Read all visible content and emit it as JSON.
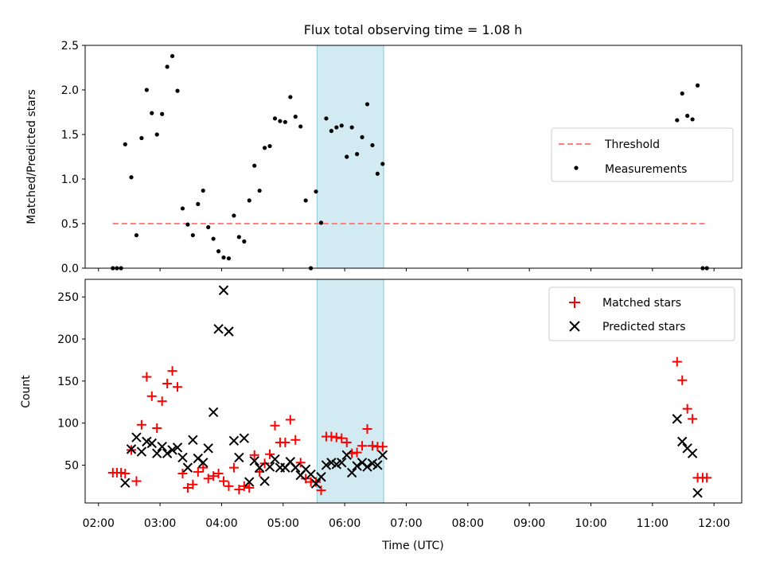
{
  "title": "Flux total observing time = 1.08 h",
  "xlabel": "Time (UTC)",
  "x_ticks": [
    "02:00",
    "03:00",
    "04:00",
    "05:00",
    "06:00",
    "07:00",
    "08:00",
    "09:00",
    "10:00",
    "11:00",
    "12:00"
  ],
  "x_range": [
    "01:47",
    "12:27"
  ],
  "highlight_span": {
    "start": "05:33",
    "end": "06:38",
    "color": "#add8e6"
  },
  "colors": {
    "threshold": "#ff7f7f",
    "measurement": "#000000",
    "matched": "#ff0000",
    "predicted": "#000000",
    "span": "#add8e6"
  },
  "chart_data": [
    {
      "type": "scatter",
      "ylabel": "Matched/Predicted stars",
      "ylim": [
        0,
        2.5
      ],
      "y_ticks": [
        "0.0",
        "0.5",
        "1.0",
        "1.5",
        "2.0",
        "2.5"
      ],
      "legend_position": "center-right",
      "threshold": {
        "name": "Threshold",
        "value": 0.5,
        "x_range": [
          "02:14",
          "11:51"
        ]
      },
      "series": [
        {
          "name": "Measurements",
          "marker": "dot",
          "points": [
            [
              "02:14",
              0
            ],
            [
              "02:18",
              0
            ],
            [
              "02:22",
              0
            ],
            [
              "02:26",
              1.39
            ],
            [
              "02:32",
              1.02
            ],
            [
              "02:37",
              0.37
            ],
            [
              "02:42",
              1.46
            ],
            [
              "02:47",
              2.0
            ],
            [
              "02:52",
              1.74
            ],
            [
              "02:57",
              1.5
            ],
            [
              "03:02",
              1.73
            ],
            [
              "03:07",
              2.26
            ],
            [
              "03:12",
              2.38
            ],
            [
              "03:17",
              1.99
            ],
            [
              "03:22",
              0.67
            ],
            [
              "03:27",
              0.49
            ],
            [
              "03:32",
              0.37
            ],
            [
              "03:37",
              0.72
            ],
            [
              "03:42",
              0.87
            ],
            [
              "03:47",
              0.46
            ],
            [
              "03:52",
              0.33
            ],
            [
              "03:57",
              0.19
            ],
            [
              "04:02",
              0.12
            ],
            [
              "04:07",
              0.11
            ],
            [
              "04:12",
              0.59
            ],
            [
              "04:17",
              0.35
            ],
            [
              "04:22",
              0.3
            ],
            [
              "04:27",
              0.76
            ],
            [
              "04:32",
              1.15
            ],
            [
              "04:37",
              0.87
            ],
            [
              "04:42",
              1.35
            ],
            [
              "04:47",
              1.37
            ],
            [
              "04:52",
              1.68
            ],
            [
              "04:57",
              1.65
            ],
            [
              "05:02",
              1.64
            ],
            [
              "05:07",
              1.92
            ],
            [
              "05:12",
              1.7
            ],
            [
              "05:17",
              1.59
            ],
            [
              "05:22",
              0.76
            ],
            [
              "05:27",
              0
            ],
            [
              "05:32",
              0.86
            ],
            [
              "05:37",
              0.51
            ],
            [
              "05:42",
              1.68
            ],
            [
              "05:47",
              1.54
            ],
            [
              "05:52",
              1.58
            ],
            [
              "05:57",
              1.6
            ],
            [
              "06:02",
              1.25
            ],
            [
              "06:07",
              1.58
            ],
            [
              "06:12",
              1.28
            ],
            [
              "06:17",
              1.47
            ],
            [
              "06:22",
              1.84
            ],
            [
              "06:27",
              1.38
            ],
            [
              "06:32",
              1.06
            ],
            [
              "06:37",
              1.17
            ],
            [
              "11:24",
              1.66
            ],
            [
              "11:29",
              1.96
            ],
            [
              "11:34",
              1.71
            ],
            [
              "11:39",
              1.67
            ],
            [
              "11:44",
              2.05
            ],
            [
              "11:49",
              0
            ],
            [
              "11:53",
              0
            ]
          ]
        }
      ]
    },
    {
      "type": "scatter",
      "ylabel": "Count",
      "ylim": [
        5,
        271
      ],
      "y_ticks": [
        "50",
        "100",
        "150",
        "200",
        "250"
      ],
      "legend_position": "upper-right",
      "series": [
        {
          "name": "Matched stars",
          "marker": "plus",
          "points": [
            [
              "02:14",
              41
            ],
            [
              "02:18",
              41
            ],
            [
              "02:22",
              41
            ],
            [
              "02:26",
              40
            ],
            [
              "02:32",
              68
            ],
            [
              "02:37",
              31
            ],
            [
              "02:42",
              98
            ],
            [
              "02:47",
              155
            ],
            [
              "02:52",
              132
            ],
            [
              "02:57",
              94
            ],
            [
              "03:02",
              126
            ],
            [
              "03:07",
              147
            ],
            [
              "03:12",
              162
            ],
            [
              "03:17",
              143
            ],
            [
              "03:22",
              40
            ],
            [
              "03:27",
              23
            ],
            [
              "03:32",
              27
            ],
            [
              "03:37",
              42
            ],
            [
              "03:42",
              47
            ],
            [
              "03:47",
              34
            ],
            [
              "03:52",
              37
            ],
            [
              "03:57",
              40
            ],
            [
              "04:02",
              31
            ],
            [
              "04:07",
              25
            ],
            [
              "04:12",
              47
            ],
            [
              "04:17",
              21
            ],
            [
              "04:22",
              25
            ],
            [
              "04:27",
              23
            ],
            [
              "04:32",
              62
            ],
            [
              "04:37",
              42
            ],
            [
              "04:42",
              52
            ],
            [
              "04:47",
              63
            ],
            [
              "04:52",
              97
            ],
            [
              "04:57",
              77
            ],
            [
              "05:02",
              77
            ],
            [
              "05:07",
              104
            ],
            [
              "05:12",
              80
            ],
            [
              "05:17",
              53
            ],
            [
              "05:22",
              34
            ],
            [
              "05:27",
              30
            ],
            [
              "05:32",
              30
            ],
            [
              "05:37",
              20
            ],
            [
              "05:42",
              84
            ],
            [
              "05:47",
              84
            ],
            [
              "05:52",
              83
            ],
            [
              "05:57",
              82
            ],
            [
              "06:02",
              77
            ],
            [
              "06:07",
              64
            ],
            [
              "06:12",
              65
            ],
            [
              "06:17",
              73
            ],
            [
              "06:22",
              93
            ],
            [
              "06:27",
              73
            ],
            [
              "06:32",
              72
            ],
            [
              "06:37",
              72
            ],
            [
              "11:24",
              173
            ],
            [
              "11:29",
              151
            ],
            [
              "11:34",
              117
            ],
            [
              "11:39",
              105
            ],
            [
              "11:44",
              35
            ],
            [
              "11:49",
              35
            ],
            [
              "11:53",
              35
            ]
          ]
        },
        {
          "name": "Predicted stars",
          "marker": "x",
          "points": [
            [
              "02:26",
              29
            ],
            [
              "02:32",
              69
            ],
            [
              "02:37",
              83
            ],
            [
              "02:42",
              66
            ],
            [
              "02:47",
              78
            ],
            [
              "02:52",
              76
            ],
            [
              "02:57",
              64
            ],
            [
              "03:02",
              72
            ],
            [
              "03:07",
              64
            ],
            [
              "03:12",
              68
            ],
            [
              "03:17",
              71
            ],
            [
              "03:22",
              59
            ],
            [
              "03:27",
              47
            ],
            [
              "03:32",
              80
            ],
            [
              "03:37",
              58
            ],
            [
              "03:42",
              53
            ],
            [
              "03:47",
              70
            ],
            [
              "03:52",
              113
            ],
            [
              "03:57",
              212
            ],
            [
              "04:02",
              258
            ],
            [
              "04:07",
              209
            ],
            [
              "04:12",
              79
            ],
            [
              "04:17",
              59
            ],
            [
              "04:22",
              82
            ],
            [
              "04:27",
              30
            ],
            [
              "04:32",
              55
            ],
            [
              "04:37",
              47
            ],
            [
              "04:42",
              31
            ],
            [
              "04:47",
              48
            ],
            [
              "04:52",
              57
            ],
            [
              "04:57",
              47
            ],
            [
              "05:02",
              47
            ],
            [
              "05:07",
              54
            ],
            [
              "05:12",
              47
            ],
            [
              "05:17",
              38
            ],
            [
              "05:22",
              45
            ],
            [
              "05:27",
              39
            ],
            [
              "05:32",
              28
            ],
            [
              "05:37",
              36
            ],
            [
              "05:42",
              50
            ],
            [
              "05:47",
              53
            ],
            [
              "05:52",
              51
            ],
            [
              "05:57",
              53
            ],
            [
              "06:02",
              62
            ],
            [
              "06:07",
              41
            ],
            [
              "06:12",
              49
            ],
            [
              "06:17",
              53
            ],
            [
              "06:22",
              48
            ],
            [
              "06:27",
              52
            ],
            [
              "06:32",
              50
            ],
            [
              "06:37",
              62
            ],
            [
              "11:24",
              105
            ],
            [
              "11:29",
              78
            ],
            [
              "11:34",
              70
            ],
            [
              "11:39",
              64
            ],
            [
              "11:44",
              17
            ]
          ]
        }
      ]
    }
  ]
}
